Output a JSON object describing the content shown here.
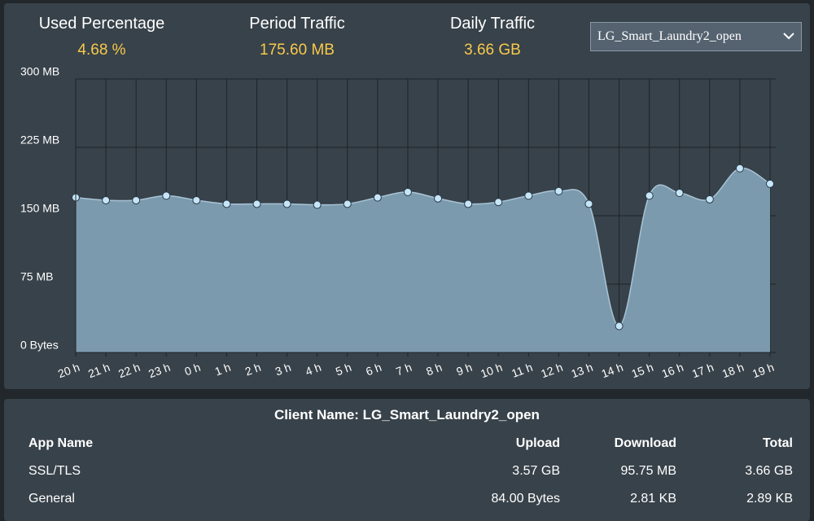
{
  "stats": [
    {
      "label": "Used Percentage",
      "value": "4.68 %"
    },
    {
      "label": "Period Traffic",
      "value": "175.60 MB"
    },
    {
      "label": "Daily Traffic",
      "value": "3.66 GB"
    }
  ],
  "dropdown": {
    "selected": "LG_Smart_Laundry2_open"
  },
  "chart_data": {
    "type": "area",
    "categories": [
      "20 h",
      "21 h",
      "22 h",
      "23 h",
      "0 h",
      "1 h",
      "2 h",
      "3 h",
      "4 h",
      "5 h",
      "6 h",
      "7 h",
      "8 h",
      "9 h",
      "10 h",
      "11 h",
      "12 h",
      "13 h",
      "14 h",
      "15 h",
      "16 h",
      "17 h",
      "18 h",
      "19 h"
    ],
    "values": [
      170,
      167,
      167,
      172,
      167,
      163,
      163,
      163,
      162,
      163,
      170,
      176,
      169,
      163,
      165,
      172,
      177,
      163,
      29,
      172,
      175,
      168,
      202,
      185
    ],
    "color": "#7b9aae",
    "line_color": "#a8c4d6",
    "point_color": "#c6e6f8",
    "ylim": [
      0,
      300
    ],
    "yticks": [
      {
        "value": 0,
        "label": "0 Bytes"
      },
      {
        "value": 75,
        "label": "75 MB"
      },
      {
        "value": 150,
        "label": "150 MB"
      },
      {
        "value": 225,
        "label": "225 MB"
      },
      {
        "value": 300,
        "label": "300 MB"
      }
    ],
    "grid": true
  },
  "table": {
    "title": "Client Name: LG_Smart_Laundry2_open",
    "header": [
      "App Name",
      "Upload",
      "Download",
      "Total"
    ],
    "rows": [
      [
        "SSL/TLS",
        "3.57 GB",
        "95.75 MB",
        "3.66 GB"
      ],
      [
        "General",
        "84.00 Bytes",
        "2.81 KB",
        "2.89 KB"
      ]
    ]
  }
}
